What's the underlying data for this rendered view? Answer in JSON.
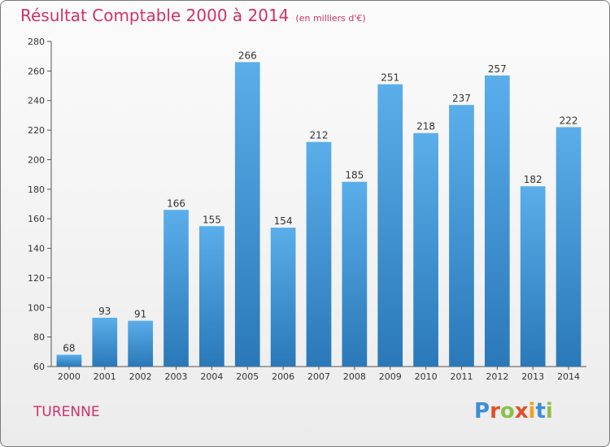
{
  "header": {
    "title": "Résultat Comptable 2000 à 2014",
    "unit": "(en milliers d'€)"
  },
  "footer": {
    "commune": "TURENNE",
    "logo_text": "Proxiti"
  },
  "colors": {
    "title": "#d0306a",
    "bar_top": "#5aaeea",
    "bar_bottom": "#2a78b8",
    "logo_letters": [
      "#3a8fd6",
      "#e0502a",
      "#8cc04a",
      "#e0502a",
      "#f0a020",
      "#3a8fd6",
      "#8cc04a"
    ]
  },
  "chart_data": {
    "type": "bar",
    "title": "Résultat Comptable 2000 à 2014",
    "xlabel": "",
    "ylabel": "",
    "categories": [
      "2000",
      "2001",
      "2002",
      "2003",
      "2004",
      "2005",
      "2006",
      "2007",
      "2008",
      "2009",
      "2010",
      "2011",
      "2012",
      "2013",
      "2014"
    ],
    "values": [
      68,
      93,
      91,
      166,
      155,
      266,
      154,
      212,
      185,
      251,
      218,
      237,
      257,
      182,
      222
    ],
    "ylim": [
      60,
      280
    ],
    "yticks": [
      60,
      80,
      100,
      120,
      140,
      160,
      180,
      200,
      220,
      240,
      260,
      280
    ],
    "grid": false
  }
}
